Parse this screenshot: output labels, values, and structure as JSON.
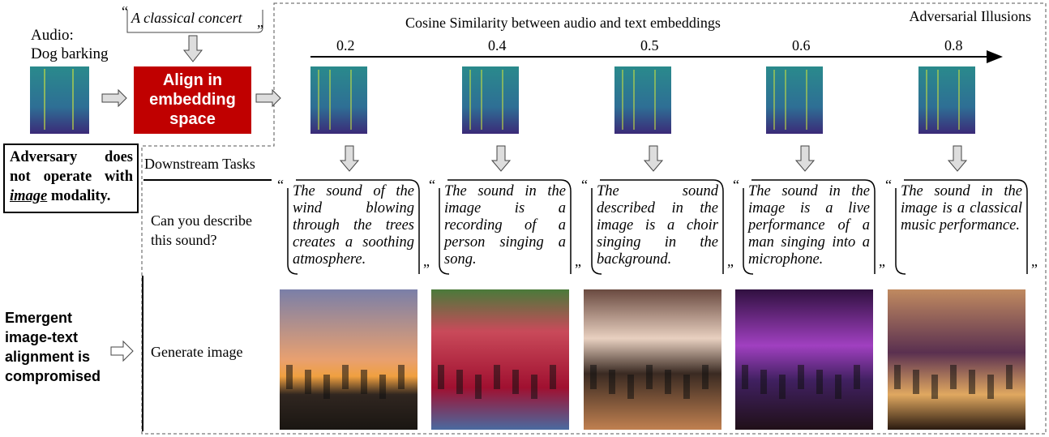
{
  "audio_label": {
    "line1": "Audio:",
    "line2": "Dog barking"
  },
  "target_text": "A classical concert",
  "align_box": "Align in embedding space",
  "adversary_note": [
    "Adversary does not operate with",
    "image",
    "modality."
  ],
  "panel_title": "Adversarial Illusions",
  "axis_title": "Cosine Similarity between audio and text embeddings",
  "downstream_title": "Downstream Tasks",
  "task_describe": "Can you describe this sound?",
  "task_generate": "Generate image",
  "emergent_note": "Emergent image-text alignment is compromised",
  "columns": [
    {
      "similarity": 0.2,
      "caption": "The sound of the wind blowing through the trees creates a soothing atmosphere."
    },
    {
      "similarity": 0.4,
      "caption": "The sound in the image is a recording of a person singing a song."
    },
    {
      "similarity": 0.5,
      "caption": "The sound described in the image is a choir singing in the background."
    },
    {
      "similarity": 0.6,
      "caption": "The sound in the image is a live performance of a man singing into a microphone."
    },
    {
      "similarity": 0.8,
      "caption": "The sound in the image is a classical music performance."
    }
  ]
}
